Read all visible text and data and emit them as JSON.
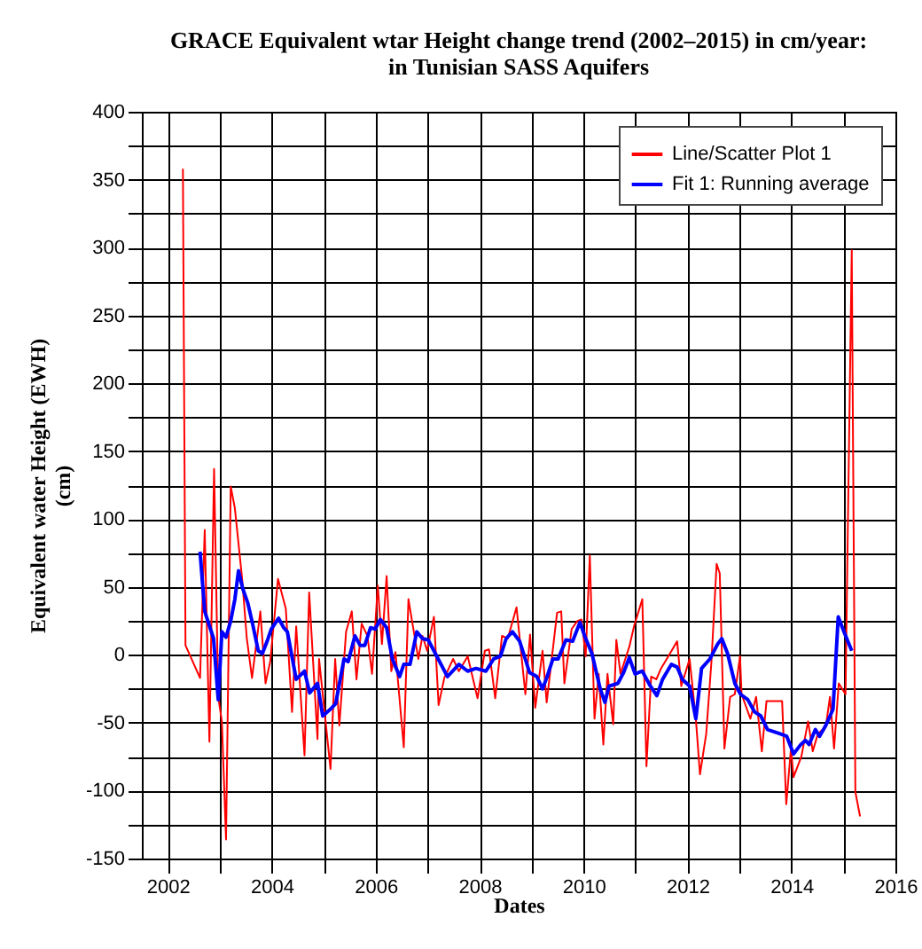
{
  "chart_data": {
    "type": "line",
    "title": "GRACE Equivalent wtar Height change trend (2002–2015) in cm/year:\nin Tunisian SASS Aquifers",
    "xlabel": "Dates",
    "ylabel": "Equivalent water Height (EWH)\n(cm)",
    "xlim": [
      2001.5,
      2016
    ],
    "xticks": [
      2002,
      {
        "value": 2003,
        "label": null
      },
      2004,
      {
        "value": 2005,
        "label": null
      },
      2006,
      {
        "value": 2007,
        "label": null
      },
      2008,
      {
        "value": 2009,
        "label": null
      },
      2010,
      {
        "value": 2011,
        "label": null
      },
      2012,
      {
        "value": 2013,
        "label": null
      },
      2014,
      {
        "value": 2015,
        "label": null
      },
      2016
    ],
    "ylim": [
      -150,
      400
    ],
    "yticks": [
      -150,
      {
        "value": -125,
        "label": null
      },
      -100,
      {
        "value": -75,
        "label": null
      },
      -50,
      {
        "value": -25,
        "label": null
      },
      0,
      {
        "value": 25,
        "label": null
      },
      50,
      {
        "value": 75,
        "label": null
      },
      100,
      {
        "value": 125,
        "label": null
      },
      150,
      {
        "value": 175,
        "label": null
      },
      200,
      {
        "value": 225,
        "label": null
      },
      250,
      {
        "value": 275,
        "label": null
      },
      300,
      {
        "value": 325,
        "label": null
      },
      350,
      {
        "value": 375,
        "label": null
      },
      400
    ],
    "grid": true,
    "legend": "top right",
    "series": [
      {
        "name": "Line/Scatter Plot 1",
        "color": "#ff0000",
        "x": [
          2002.29,
          2002.34,
          2002.62,
          2002.71,
          2002.8,
          2002.89,
          2002.97,
          2003.04,
          2003.12,
          2003.21,
          2003.29,
          2003.43,
          2003.52,
          2003.62,
          2003.78,
          2003.88,
          2003.97,
          2004.12,
          2004.27,
          2004.39,
          2004.47,
          2004.63,
          2004.72,
          2004.88,
          2004.91,
          2005.13,
          2005.22,
          2005.3,
          2005.43,
          2005.54,
          2005.63,
          2005.73,
          2005.84,
          2005.93,
          2006.04,
          2006.12,
          2006.21,
          2006.3,
          2006.38,
          2006.54,
          2006.63,
          2006.82,
          2006.9,
          2006.99,
          2007.12,
          2007.21,
          2007.32,
          2007.49,
          2007.6,
          2007.77,
          2007.96,
          2008.1,
          2008.18,
          2008.3,
          2008.43,
          2008.54,
          2008.71,
          2008.88,
          2008.97,
          2009.07,
          2009.21,
          2009.29,
          2009.49,
          2009.57,
          2009.63,
          2009.77,
          2009.88,
          2009.96,
          2010.04,
          2010.12,
          2010.21,
          2010.29,
          2010.38,
          2010.46,
          2010.57,
          2010.63,
          2010.71,
          2010.88,
          2010.97,
          2011.13,
          2011.21,
          2011.3,
          2011.4,
          2011.49,
          2011.6,
          2011.8,
          2011.88,
          2012.04,
          2012.16,
          2012.24,
          2012.36,
          2012.46,
          2012.56,
          2012.62,
          2012.71,
          2012.82,
          2012.91,
          2013.01,
          2013.04,
          2013.21,
          2013.32,
          2013.43,
          2013.52,
          2013.82,
          2013.9,
          2013.99,
          2014.04,
          2014.19,
          2014.32,
          2014.41,
          2014.51,
          2014.66,
          2014.74,
          2014.82,
          2014.91,
          2015.04,
          2015.16,
          2015.23,
          2015.32
        ],
        "values": [
          358,
          7,
          -17,
          92,
          -64,
          137,
          -31,
          -49,
          -136,
          124,
          108,
          56,
          12,
          -17,
          32,
          -21,
          -5,
          56,
          34,
          -42,
          21,
          -74,
          46,
          -62,
          -3,
          -84,
          -3,
          -52,
          17,
          32,
          -18,
          23,
          14,
          -14,
          51,
          8,
          58,
          -12,
          2,
          -68,
          41,
          -3,
          14,
          3,
          28,
          -37,
          -17,
          -3,
          -12,
          -1,
          -32,
          3,
          4,
          -32,
          14,
          12,
          35,
          -29,
          15,
          -39,
          3,
          -35,
          31,
          32,
          -21,
          19,
          25,
          26,
          -1,
          73,
          -47,
          -14,
          -66,
          -14,
          -51,
          11,
          -14,
          6,
          21,
          41,
          -82,
          -16,
          -18,
          -10,
          -3,
          10,
          -23,
          -3,
          -47,
          -88,
          -58,
          -5,
          67,
          60,
          -69,
          -31,
          -29,
          -1,
          -29,
          -47,
          -31,
          -71,
          -34,
          -34,
          -110,
          -69,
          -90,
          -75,
          -49,
          -71,
          -58,
          -53,
          -31,
          -69,
          -21,
          -29,
          298,
          -101,
          -119
        ]
      },
      {
        "name": "Fit 1: Running average",
        "color": "#0000ff",
        "x": [
          2002.62,
          2002.71,
          2002.88,
          2002.97,
          2003.04,
          2003.12,
          2003.21,
          2003.29,
          2003.36,
          2003.44,
          2003.54,
          2003.63,
          2003.74,
          2003.82,
          2003.91,
          2003.99,
          2004.13,
          2004.23,
          2004.3,
          2004.47,
          2004.63,
          2004.73,
          2004.88,
          2004.98,
          2005.13,
          2005.23,
          2005.39,
          2005.47,
          2005.6,
          2005.7,
          2005.79,
          2005.9,
          2005.99,
          2006.09,
          2006.21,
          2006.32,
          2006.46,
          2006.54,
          2006.66,
          2006.79,
          2006.9,
          2007.01,
          2007.12,
          2007.38,
          2007.6,
          2007.77,
          2007.93,
          2008.12,
          2008.27,
          2008.4,
          2008.51,
          2008.63,
          2008.77,
          2008.96,
          2009.1,
          2009.21,
          2009.29,
          2009.41,
          2009.51,
          2009.66,
          2009.79,
          2009.93,
          2010.02,
          2010.16,
          2010.32,
          2010.41,
          2010.49,
          2010.66,
          2010.77,
          2010.88,
          2010.99,
          2011.13,
          2011.27,
          2011.41,
          2011.52,
          2011.69,
          2011.8,
          2011.9,
          2012.04,
          2012.16,
          2012.27,
          2012.43,
          2012.58,
          2012.66,
          2012.77,
          2012.91,
          2013.02,
          2013.16,
          2013.29,
          2013.41,
          2013.54,
          2013.77,
          2013.91,
          2014.04,
          2014.18,
          2014.27,
          2014.34,
          2014.46,
          2014.54,
          2014.66,
          2014.8,
          2014.9,
          2015.01,
          2015.16
        ],
        "values": [
          76,
          32,
          12,
          -33,
          17,
          13,
          25,
          41,
          62,
          49,
          38,
          23,
          3,
          1,
          10,
          19,
          27,
          20,
          17,
          -18,
          -12,
          -28,
          -21,
          -45,
          -40,
          -36,
          -3,
          -5,
          14,
          7,
          7,
          20,
          19,
          26,
          20,
          -3,
          -16,
          -7,
          -7,
          17,
          12,
          11,
          3,
          -16,
          -7,
          -12,
          -10,
          -12,
          -3,
          -1,
          12,
          17,
          10,
          -13,
          -16,
          -25,
          -17,
          -3,
          -3,
          11,
          10,
          24,
          14,
          1,
          -25,
          -35,
          -23,
          -21,
          -13,
          -2,
          -14,
          -12,
          -22,
          -30,
          -18,
          -7,
          -9,
          -18,
          -23,
          -47,
          -10,
          -3,
          8,
          12,
          1,
          -21,
          -29,
          -33,
          -42,
          -45,
          -55,
          -58,
          -60,
          -73,
          -66,
          -63,
          -66,
          -55,
          -60,
          -52,
          -40,
          28,
          17,
          3
        ]
      }
    ]
  }
}
